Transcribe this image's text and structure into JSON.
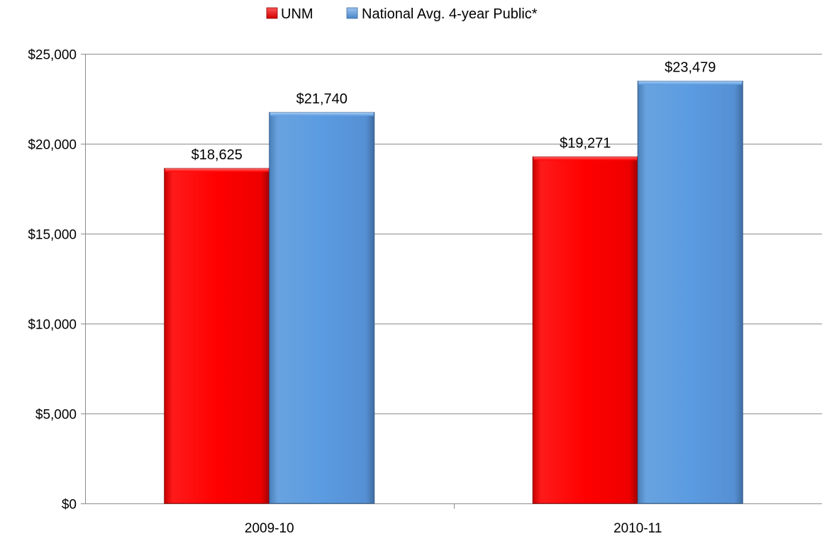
{
  "chart_data": {
    "type": "bar",
    "title": "",
    "xlabel": "",
    "ylabel": "",
    "categories": [
      "2009-10",
      "2010-11"
    ],
    "series": [
      {
        "name": "UNM",
        "values": [
          18625,
          19271
        ],
        "data_labels": [
          "$18,625",
          "$19,271"
        ],
        "color": "#ff0000"
      },
      {
        "name": "National Avg. 4-year Public*",
        "values": [
          21740,
          23479
        ],
        "data_labels": [
          "$21,740",
          "$23,479"
        ],
        "color": "#5b9bd5"
      }
    ],
    "ylim": [
      0,
      25000
    ],
    "yticks": [
      0,
      5000,
      10000,
      15000,
      20000,
      25000
    ],
    "ytick_labels": [
      "$0",
      "$5,000",
      "$10,000",
      "$15,000",
      "$20,000",
      "$25,000"
    ],
    "grid": true,
    "legend_position": "top-center"
  }
}
